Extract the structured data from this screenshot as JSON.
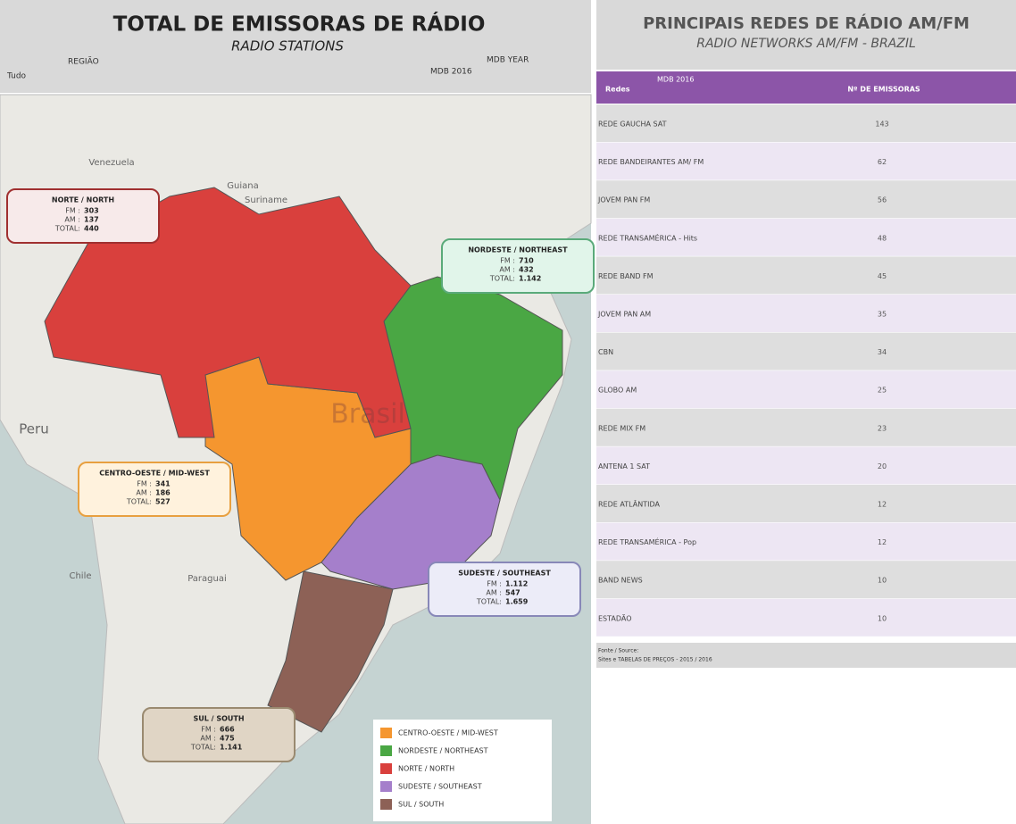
{
  "left": {
    "title": "TOTAL DE EMISSORAS DE RÁDIO",
    "subtitle": "RADIO STATIONS",
    "filter_label": "REGIÃO",
    "filter_value": "Tudo",
    "year_label": "MDB YEAR",
    "year_value": "MDB 2016",
    "map_labels": [
      "Venezuela",
      "Guiana",
      "Suriname",
      "Peru",
      "Chile",
      "Paraguai",
      "Brasil"
    ],
    "stat_labels": {
      "fm": "FM :",
      "am": "AM :",
      "total": "TOTAL:"
    },
    "regions": [
      {
        "name": "CENTRO-OESTE / MID-WEST",
        "color": "#f5962f",
        "fm": "341",
        "am": "186",
        "total": "527"
      },
      {
        "name": "NORDESTE / NORTHEAST",
        "color": "#4aa744",
        "fm": "710",
        "am": "432",
        "total": "1.142"
      },
      {
        "name": "NORTE / NORTH",
        "color": "#d9403d",
        "fm": "303",
        "am": "137",
        "total": "440"
      },
      {
        "name": "SUDESTE / SOUTHEAST",
        "color": "#a57fcb",
        "fm": "1.112",
        "am": "547",
        "total": "1.659"
      },
      {
        "name": "SUL / SOUTH",
        "color": "#8d6156",
        "fm": "666",
        "am": "475",
        "total": "1.141"
      }
    ]
  },
  "right": {
    "title": "PRINCIPAIS REDES DE RÁDIO AM/FM",
    "subtitle": "RADIO NETWORKS AM/FM - BRAZIL",
    "header_note": "MDB 2016",
    "columns": [
      "Redes",
      "Nº DE EMISSORAS"
    ],
    "rows": [
      [
        "REDE GAUCHA SAT",
        "143"
      ],
      [
        "REDE BANDEIRANTES AM/  FM",
        "62"
      ],
      [
        "JOVEM PAN FM",
        "56"
      ],
      [
        "REDE TRANSAMÉRICA - Hits",
        "48"
      ],
      [
        "REDE BAND FM",
        "45"
      ],
      [
        "JOVEM PAN  AM",
        "35"
      ],
      [
        "CBN",
        "34"
      ],
      [
        "GLOBO AM",
        "25"
      ],
      [
        "REDE MIX FM",
        "23"
      ],
      [
        "ANTENA 1 SAT",
        "20"
      ],
      [
        "REDE ATLÂNTIDA",
        "12"
      ],
      [
        "REDE TRANSAMÉRICA - Pop",
        "12"
      ],
      [
        "BAND NEWS",
        "10"
      ],
      [
        "ESTADÃO",
        "10"
      ]
    ],
    "source_label": "Fonte / Source:",
    "source": "Sites e TABELAS DE PREÇOS - 2015 / 2016"
  }
}
